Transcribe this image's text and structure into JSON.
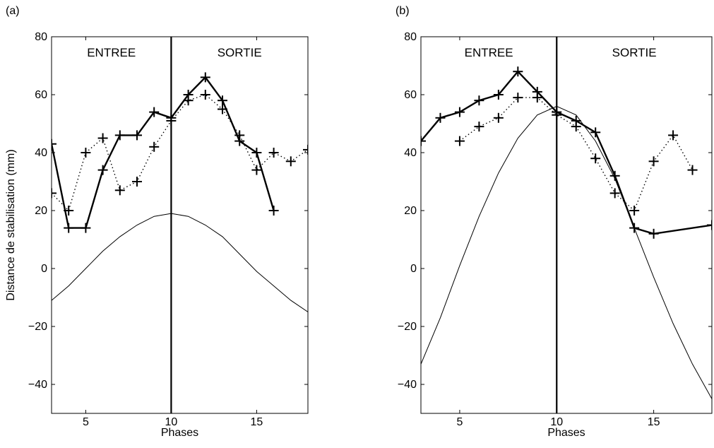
{
  "chart_data": [
    {
      "type": "line",
      "panel_label": "(a)",
      "xlabel": "Phases",
      "ylabel": "Distance de stabilisation (mm)",
      "xlim": [
        3,
        18
      ],
      "ylim": [
        -50,
        80
      ],
      "xticks": [
        5,
        10,
        15
      ],
      "yticks": [
        -40,
        -20,
        0,
        20,
        40,
        60,
        80
      ],
      "regions": {
        "left": "ENTREE",
        "right": "SORTIE",
        "divider_x": 10
      },
      "grid": false,
      "series": [
        {
          "style": "thick-solid-plus",
          "x": [
            3,
            4,
            5,
            6,
            7,
            8,
            9,
            10,
            11,
            12,
            13,
            14,
            15,
            16
          ],
          "y": [
            43,
            14,
            14,
            34,
            46,
            46,
            54,
            52,
            60,
            66,
            58,
            44,
            40,
            20
          ]
        },
        {
          "style": "dotted-plus",
          "x": [
            3,
            4,
            5,
            6,
            7,
            8,
            9,
            10,
            11,
            12,
            13,
            14,
            15,
            16,
            17,
            18
          ],
          "y": [
            26,
            20,
            40,
            45,
            27,
            30,
            42,
            51,
            58,
            60,
            55,
            46,
            34,
            40,
            37,
            41
          ]
        },
        {
          "style": "thin-solid",
          "x": [
            3,
            4,
            5,
            6,
            7,
            8,
            9,
            10,
            11,
            12,
            13,
            14,
            15,
            16,
            17,
            18
          ],
          "y": [
            -11,
            -6,
            0,
            6,
            11,
            15,
            18,
            19,
            18,
            15,
            11,
            5,
            -1,
            -6,
            -11,
            -15
          ]
        }
      ]
    },
    {
      "type": "line",
      "panel_label": "(b)",
      "xlabel": "Phases",
      "ylabel": "",
      "xlim": [
        3,
        18
      ],
      "ylim": [
        -50,
        80
      ],
      "xticks": [
        5,
        10,
        15
      ],
      "yticks": [
        -40,
        -20,
        0,
        20,
        40,
        60,
        80
      ],
      "regions": {
        "left": "ENTREE",
        "right": "SORTIE",
        "divider_x": 10
      },
      "grid": false,
      "series": [
        {
          "style": "thick-solid-plus",
          "x": [
            3,
            4,
            5,
            6,
            7,
            8,
            9,
            10,
            11,
            12,
            13,
            14,
            15,
            18
          ],
          "y": [
            44,
            52,
            54,
            58,
            60,
            68,
            61,
            54,
            51,
            47,
            32,
            14,
            12,
            15
          ]
        },
        {
          "style": "dotted-plus",
          "x": [
            5,
            6,
            7,
            8,
            9,
            10,
            11,
            12,
            13,
            14,
            15,
            16,
            17
          ],
          "y": [
            44,
            49,
            52,
            59,
            59,
            53,
            49,
            38,
            26,
            20,
            37,
            46,
            34
          ]
        },
        {
          "style": "thin-solid",
          "x": [
            3,
            4,
            5,
            6,
            7,
            8,
            9,
            10,
            11,
            12,
            13,
            14,
            15,
            16,
            17,
            18
          ],
          "y": [
            -33,
            -17,
            1,
            18,
            33,
            45,
            53,
            56,
            53,
            44,
            31,
            14,
            -3,
            -19,
            -33,
            -45
          ]
        }
      ]
    }
  ]
}
